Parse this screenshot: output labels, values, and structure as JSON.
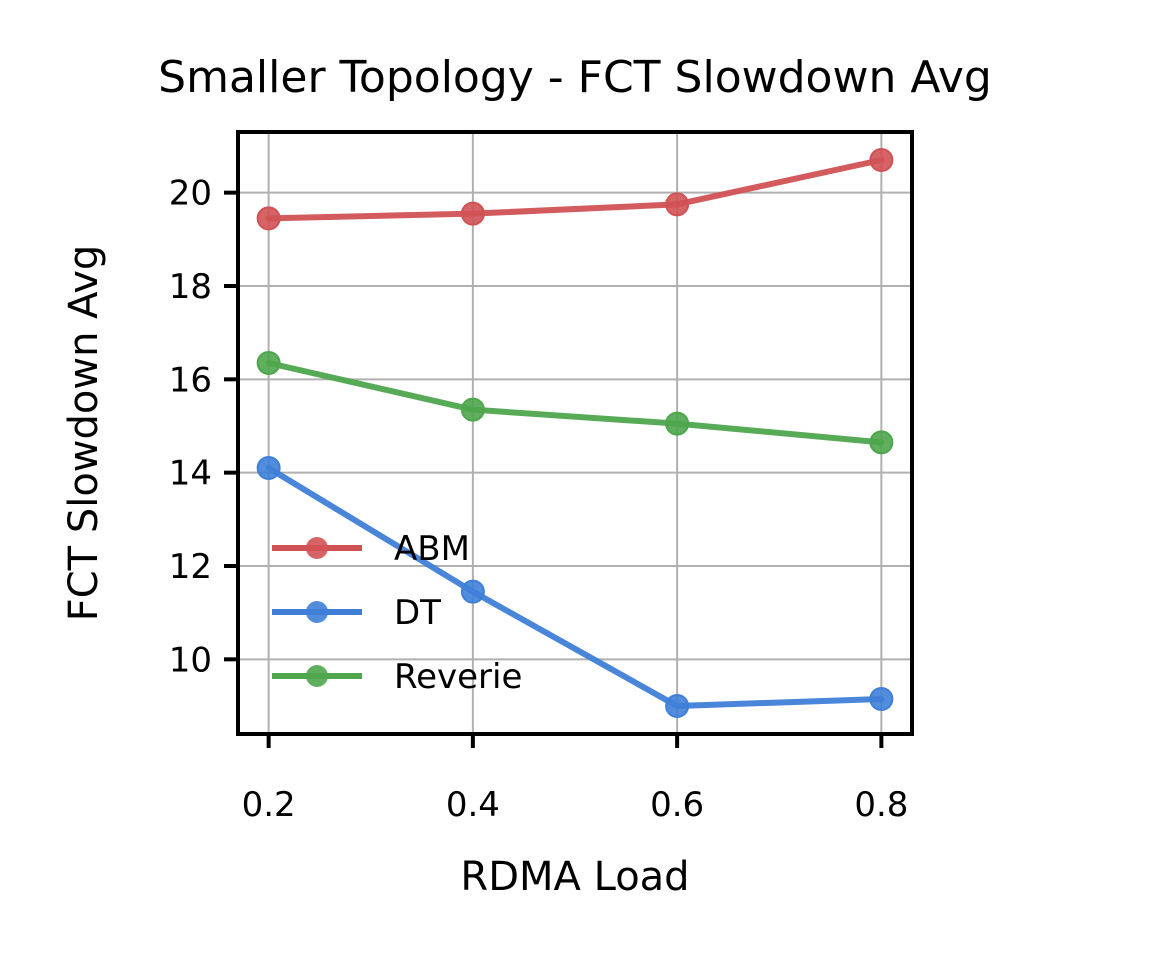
{
  "chart_data": {
    "type": "line",
    "title": "Smaller Topology - FCT Slowdown Avg",
    "xlabel": "RDMA Load",
    "ylabel": "FCT Slowdown Avg",
    "x": [
      0.2,
      0.4,
      0.6,
      0.8
    ],
    "x_tick_labels": [
      "0.2",
      "0.4",
      "0.6",
      "0.8"
    ],
    "xlim": [
      0.17,
      0.83
    ],
    "y_ticks": [
      10,
      12,
      14,
      16,
      18,
      20
    ],
    "y_tick_labels": [
      "10",
      "12",
      "14",
      "16",
      "18",
      "20"
    ],
    "ylim": [
      8.4,
      21.3
    ],
    "grid": true,
    "legend_position": "lower-left",
    "series": [
      {
        "name": "ABM",
        "color": "#d15254",
        "values": [
          19.45,
          19.55,
          19.75,
          20.7
        ]
      },
      {
        "name": "DT",
        "color": "#3f7fd8",
        "values": [
          14.1,
          11.45,
          9.0,
          9.15
        ]
      },
      {
        "name": "Reverie",
        "color": "#4fa64d",
        "values": [
          16.35,
          15.35,
          15.05,
          14.65
        ]
      }
    ]
  }
}
